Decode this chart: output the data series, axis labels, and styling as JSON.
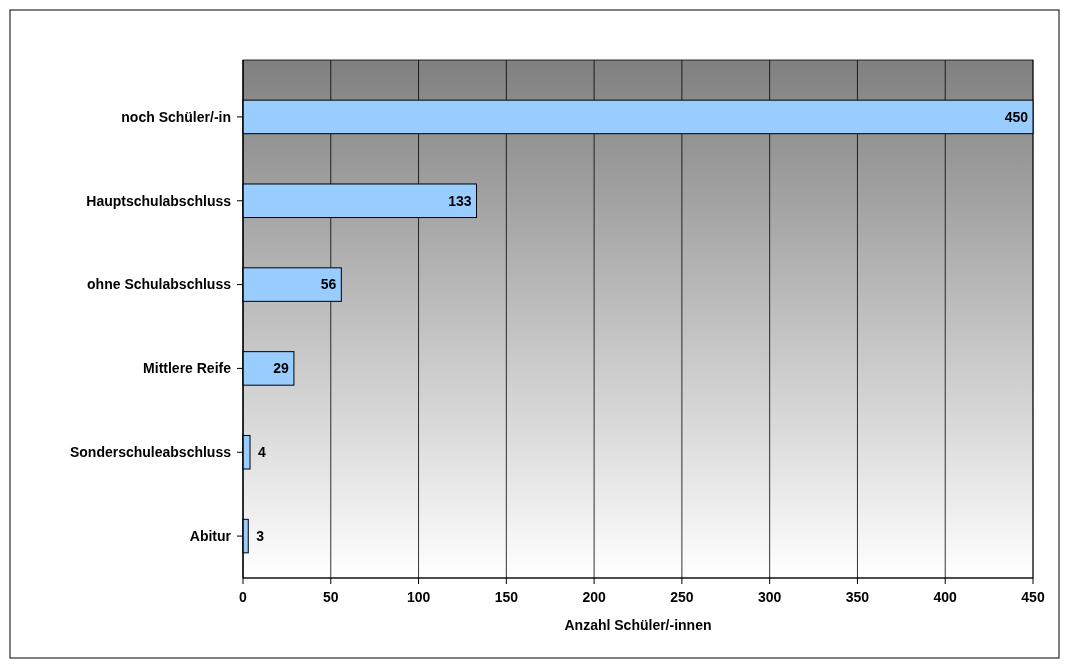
{
  "chart_data": {
    "type": "bar",
    "orientation": "horizontal",
    "categories": [
      "noch Schüler/-in",
      "Hauptschulabschluss",
      "ohne Schulabschluss",
      "Mittlere Reife",
      "Sonderschuleabschluss",
      "Abitur"
    ],
    "values": [
      450,
      133,
      56,
      29,
      4,
      3
    ],
    "color": "#99ccff",
    "xlabel": "Anzahl Schüler/-innen",
    "xlim": [
      0,
      450
    ],
    "xticks": [
      0,
      50,
      100,
      150,
      200,
      250,
      300,
      350,
      400,
      450
    ],
    "grid": "x",
    "data_labels": true
  }
}
